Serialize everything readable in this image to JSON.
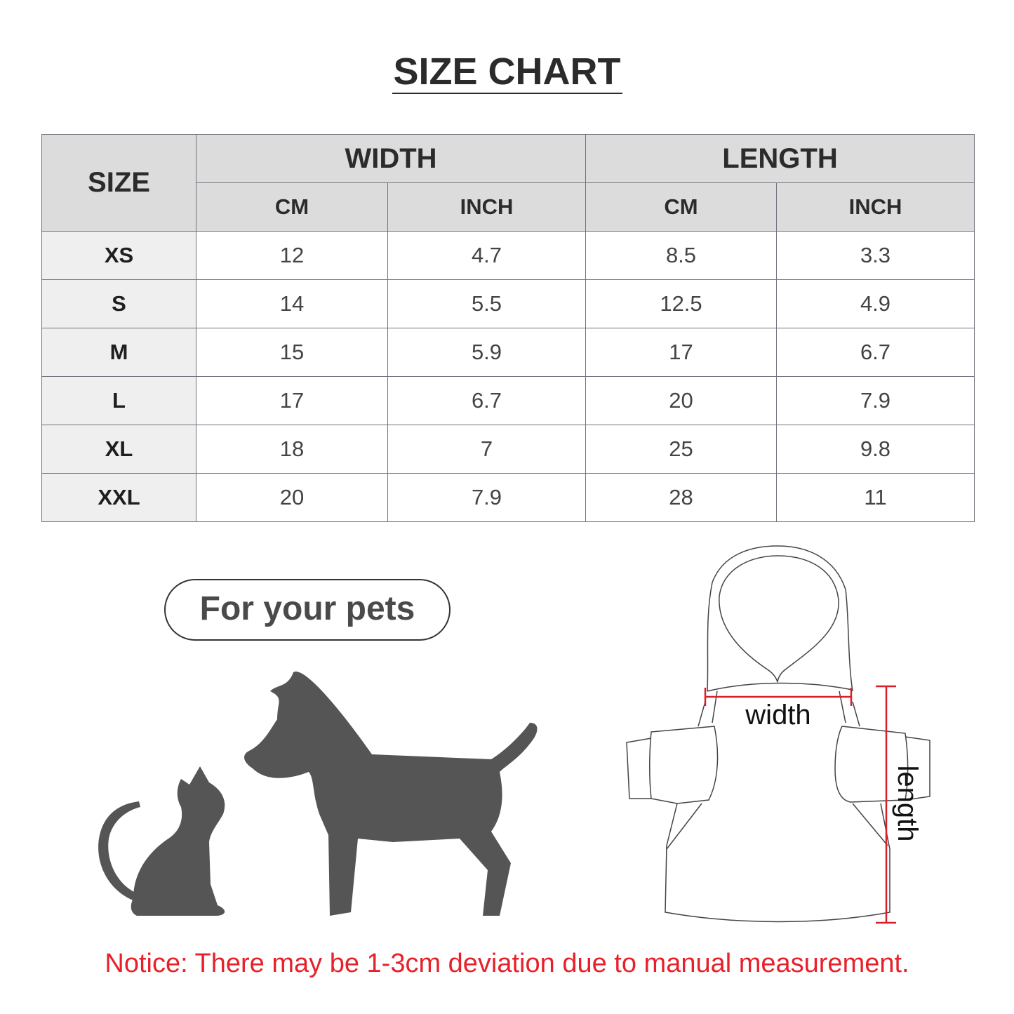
{
  "title": "SIZE CHART",
  "table": {
    "size_header": "SIZE",
    "groups": [
      "WIDTH",
      "LENGTH"
    ],
    "units": [
      "CM",
      "INCH",
      "CM",
      "INCH"
    ],
    "rows": [
      {
        "size": "XS",
        "values": [
          "12",
          "4.7",
          "8.5",
          "3.3"
        ]
      },
      {
        "size": "S",
        "values": [
          "14",
          "5.5",
          "12.5",
          "4.9"
        ]
      },
      {
        "size": "M",
        "values": [
          "15",
          "5.9",
          "17",
          "6.7"
        ]
      },
      {
        "size": "L",
        "values": [
          "17",
          "6.7",
          "20",
          "7.9"
        ]
      },
      {
        "size": "XL",
        "values": [
          "18",
          "7",
          "25",
          "9.8"
        ]
      },
      {
        "size": "XXL",
        "values": [
          "20",
          "7.9",
          "28",
          "11"
        ]
      }
    ]
  },
  "badge": "For your pets",
  "diagram": {
    "width_label": "width",
    "length_label": "length",
    "measure_color": "#d9202a"
  },
  "silhouette_color": "#555555",
  "notice": "Notice: There may be 1-3cm deviation due to manual measurement."
}
